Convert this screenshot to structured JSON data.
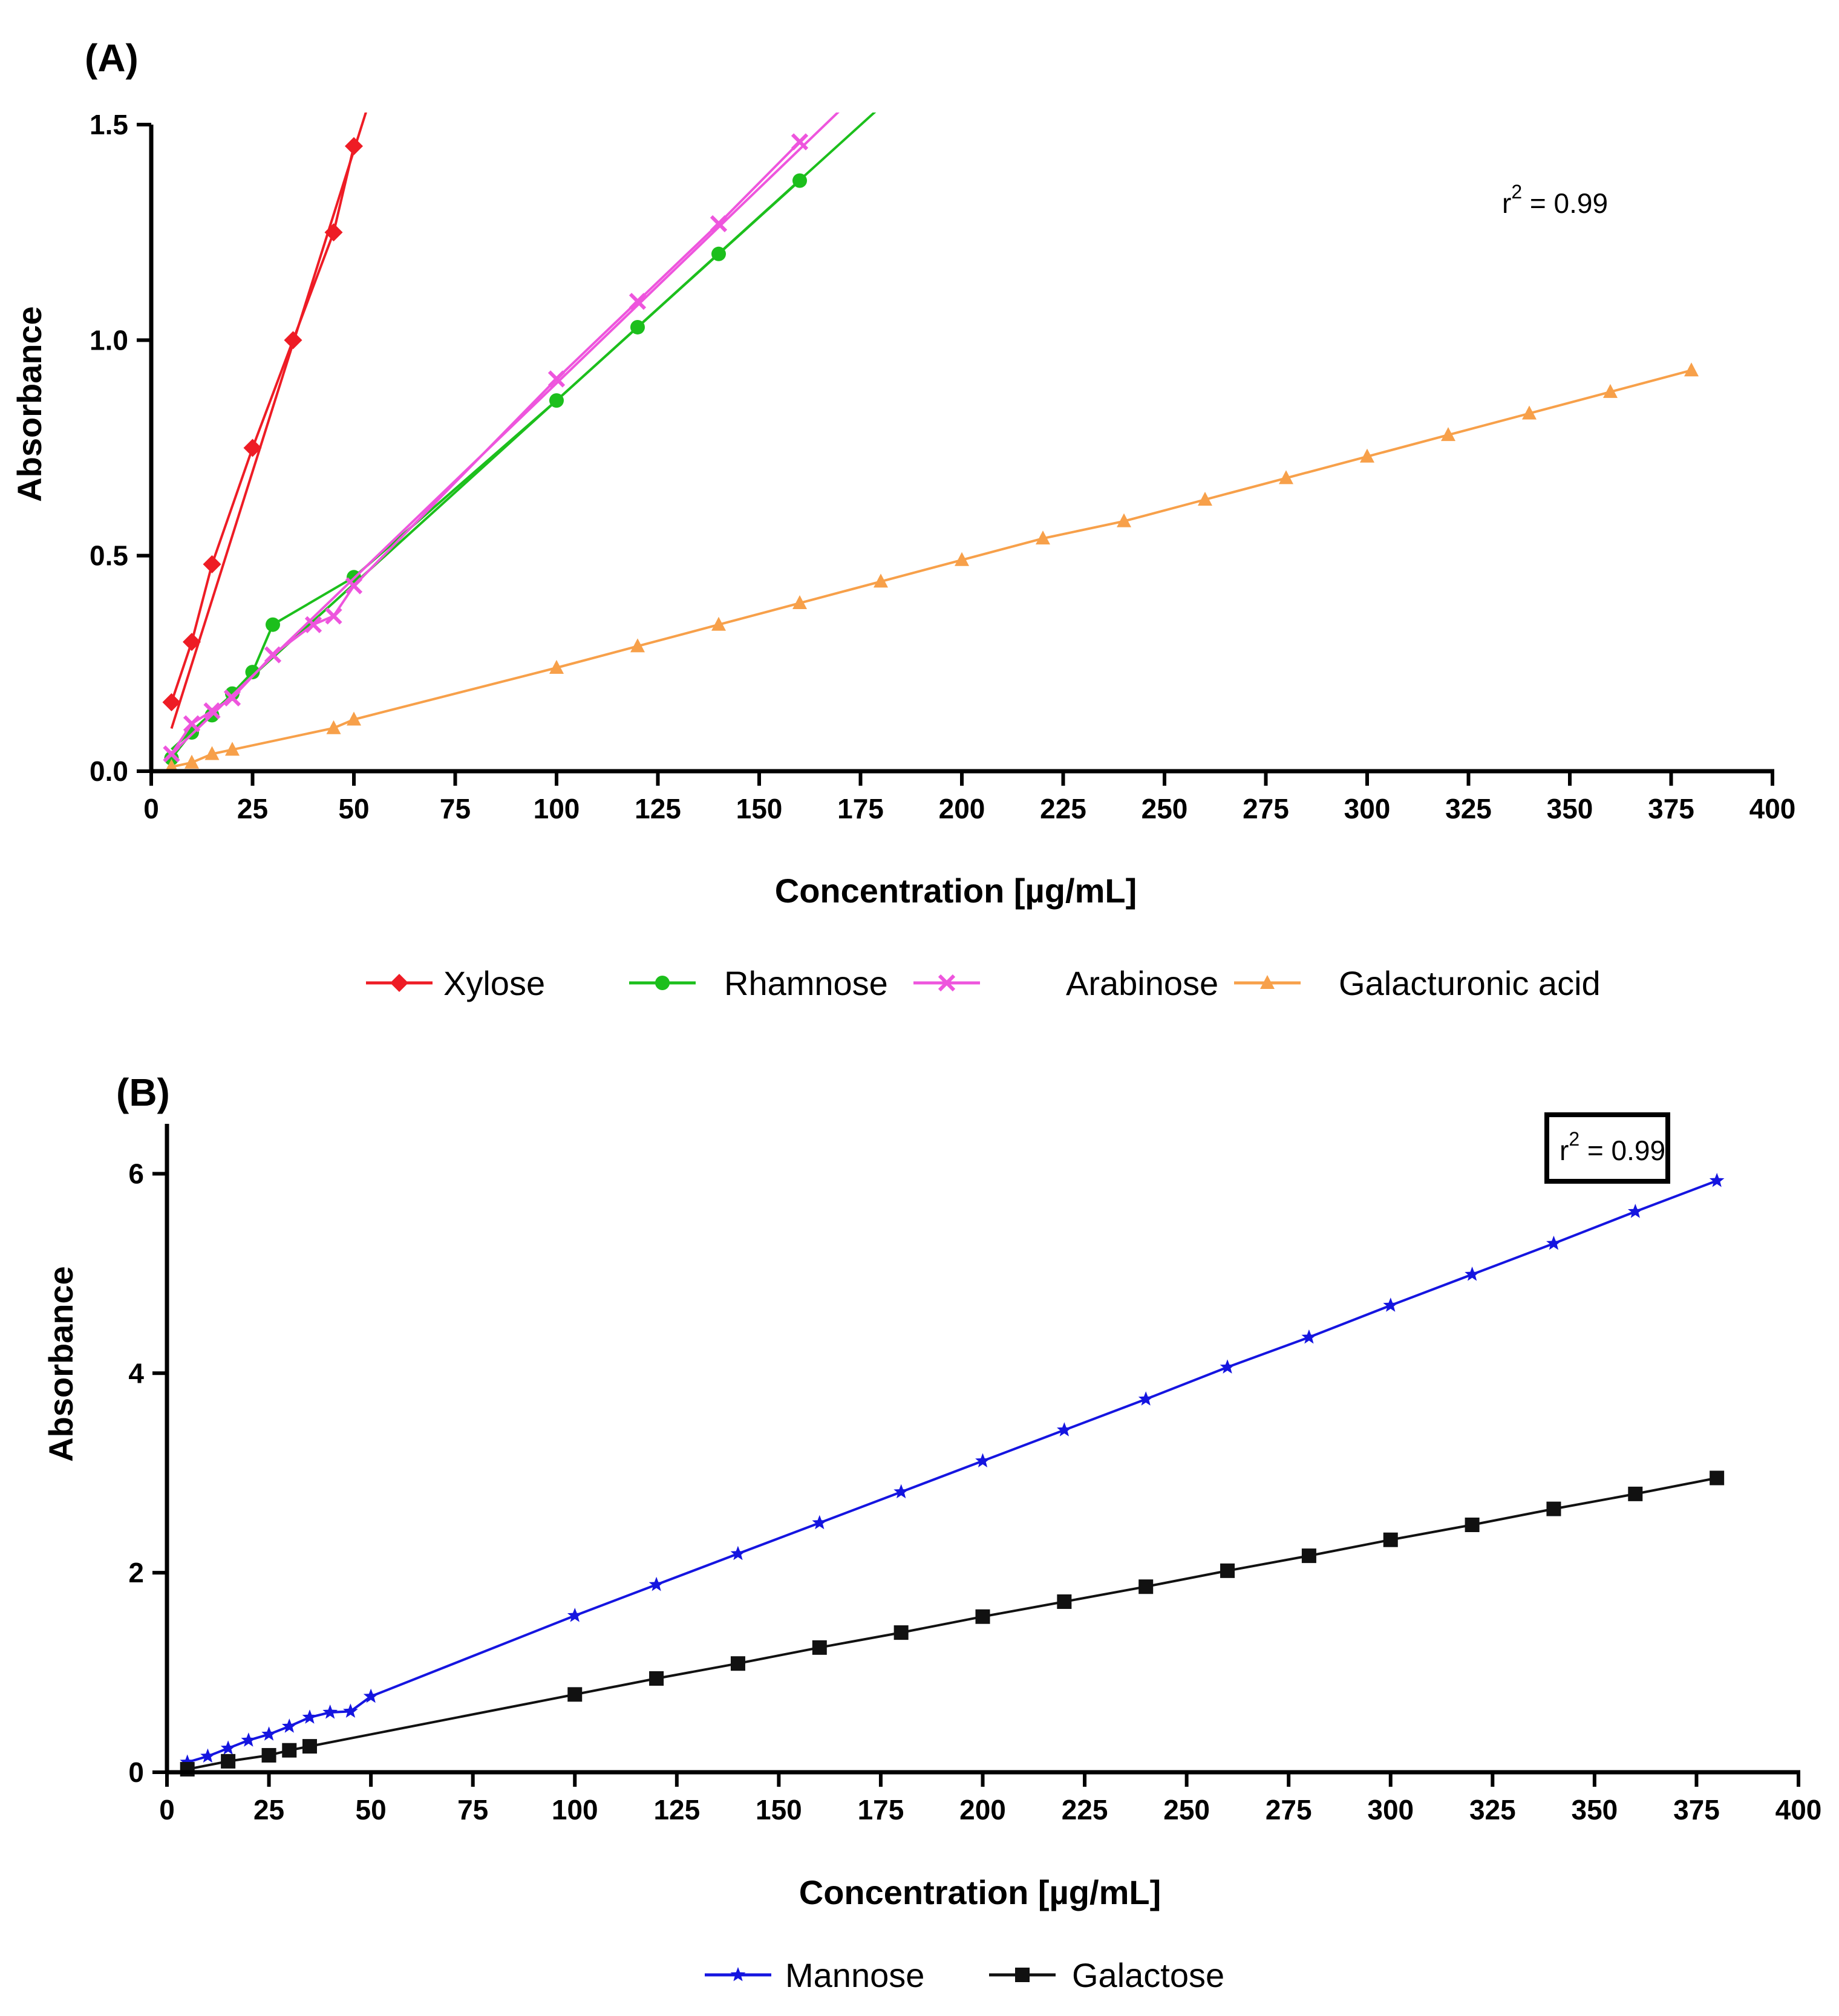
{
  "chart_data": [
    {
      "type": "line",
      "panel_label": "(A)",
      "xlabel": "Concentration  [µg/mL]",
      "ylabel": "Absorbance",
      "xlim": [
        0,
        400
      ],
      "ylim": [
        0,
        1.5
      ],
      "x_ticks": [
        "0",
        "25",
        "50",
        "75",
        "100",
        "125",
        "150",
        "175",
        "200",
        "225",
        "250",
        "275",
        "300",
        "325",
        "350",
        "375",
        "400"
      ],
      "y_ticks": [
        "0.0",
        "0.5",
        "1.0",
        "1.5"
      ],
      "annotation": {
        "prefix": "r",
        "sup": "2",
        "suffix": " = 0.99",
        "boxed": false
      },
      "legend_position": "bottom",
      "series": [
        {
          "name": "Xylose",
          "color": "#ee1c25",
          "marker": "diamond",
          "x": [
            5,
            10,
            15,
            25,
            35,
            45,
            50
          ],
          "y": [
            0.16,
            0.3,
            0.48,
            0.75,
            1.0,
            1.25,
            1.45
          ],
          "fit": {
            "slope": 0.0298,
            "intercept": -0.05
          }
        },
        {
          "name": "Rhamnose",
          "color": "#1cbf1c",
          "marker": "circle",
          "x": [
            5,
            10,
            15,
            20,
            25,
            30,
            50,
            100,
            120,
            140,
            160
          ],
          "y": [
            0.03,
            0.09,
            0.13,
            0.18,
            0.23,
            0.34,
            0.45,
            0.86,
            1.03,
            1.2,
            1.37
          ],
          "fit": {
            "slope": 0.00852,
            "intercept": 0.008
          }
        },
        {
          "name": "Arabinose",
          "color": "#ee55dd",
          "marker": "x",
          "x": [
            5,
            10,
            15,
            20,
            30,
            40,
            45,
            50,
            100,
            120,
            140,
            160
          ],
          "y": [
            0.04,
            0.11,
            0.14,
            0.17,
            0.27,
            0.34,
            0.36,
            0.43,
            0.91,
            1.09,
            1.27,
            1.46
          ],
          "fit": {
            "slope": 0.00905,
            "intercept": -0.005
          }
        },
        {
          "name": "Galacturonic acid",
          "color": "#f7a04a",
          "marker": "triangle",
          "x": [
            5,
            10,
            15,
            20,
            45,
            50,
            100,
            120,
            140,
            160,
            180,
            200,
            220,
            240,
            260,
            280,
            300,
            320,
            340,
            360,
            380
          ],
          "y": [
            0.01,
            0.02,
            0.04,
            0.05,
            0.1,
            0.12,
            0.24,
            0.29,
            0.34,
            0.39,
            0.44,
            0.49,
            0.54,
            0.58,
            0.63,
            0.68,
            0.73,
            0.78,
            0.83,
            0.88,
            0.93
          ],
          "fit": null
        }
      ]
    },
    {
      "type": "line",
      "panel_label": "(B)",
      "xlabel": "Concentration  [µg/mL]",
      "ylabel": "Absorbance",
      "xlim": [
        0,
        400
      ],
      "ylim": [
        0,
        6.5
      ],
      "x_ticks": [
        "0",
        "25",
        "50",
        "75",
        "100",
        "125",
        "150",
        "175",
        "200",
        "225",
        "250",
        "275",
        "300",
        "325",
        "350",
        "375",
        "400"
      ],
      "y_ticks": [
        "0",
        "2",
        "4",
        "6"
      ],
      "annotation": {
        "prefix": "r",
        "sup": "2",
        "suffix": " = 0.99",
        "boxed": true
      },
      "legend_position": "bottom",
      "series": [
        {
          "name": "Mannose",
          "color": "#1515e0",
          "marker": "star",
          "x": [
            5,
            10,
            15,
            20,
            25,
            30,
            35,
            40,
            45,
            50,
            100,
            120,
            140,
            160,
            180,
            200,
            220,
            240,
            260,
            280,
            300,
            320,
            340,
            360,
            380
          ],
          "y": [
            0.1,
            0.16,
            0.24,
            0.32,
            0.38,
            0.46,
            0.55,
            0.6,
            0.61,
            0.76,
            1.57,
            1.88,
            2.19,
            2.5,
            2.81,
            3.12,
            3.43,
            3.74,
            4.06,
            4.36,
            4.68,
            4.99,
            5.3,
            5.62,
            5.93
          ],
          "fit": null
        },
        {
          "name": "Galactose",
          "color": "#111111",
          "marker": "square",
          "x": [
            5,
            15,
            25,
            30,
            35,
            100,
            120,
            140,
            160,
            180,
            200,
            220,
            240,
            260,
            280,
            300,
            320,
            340,
            360,
            380
          ],
          "y": [
            0.03,
            0.11,
            0.17,
            0.22,
            0.26,
            0.78,
            0.94,
            1.09,
            1.25,
            1.4,
            1.56,
            1.71,
            1.86,
            2.02,
            2.17,
            2.33,
            2.48,
            2.64,
            2.79,
            2.95
          ],
          "fit": null
        }
      ]
    }
  ]
}
